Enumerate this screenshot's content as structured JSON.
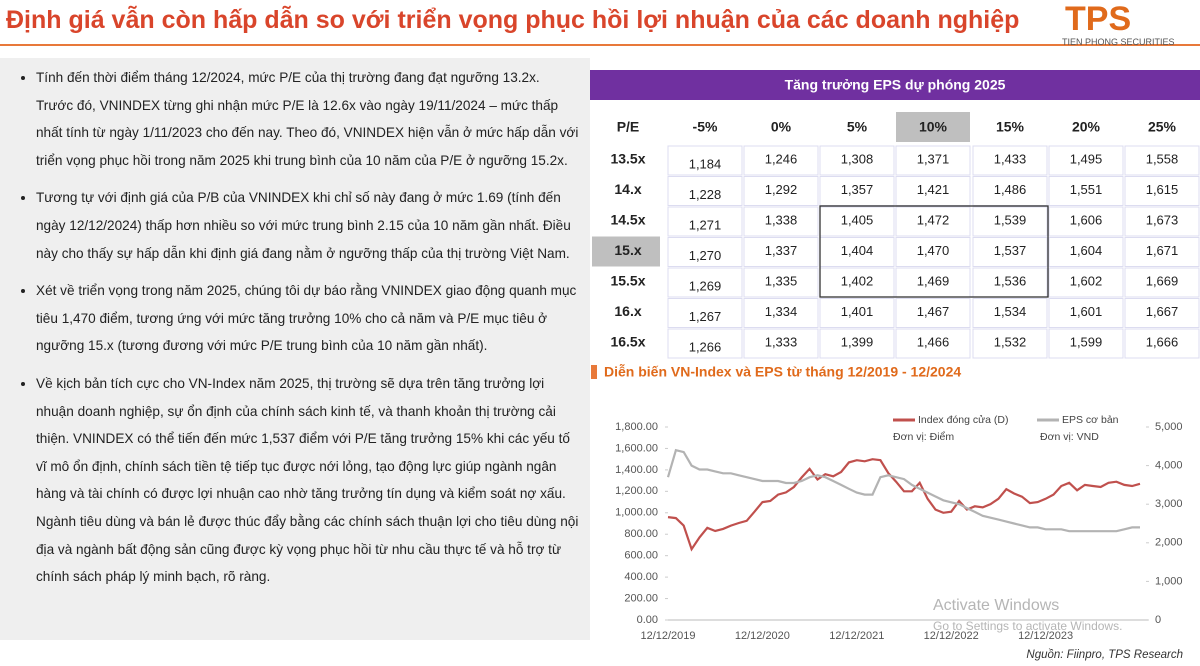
{
  "header": {
    "title": "Định giá vẫn còn hấp dẫn so với triển vọng phục hồi lợi nhuận của các doanh nghiệp",
    "logo": "TPS",
    "logo_subtitle": "TIEN PHONG SECURITIES"
  },
  "bullets": [
    "Tính đến thời điểm tháng 12/2024, mức P/E của thị trường đang đạt ngưỡng 13.2x. Trước đó, VNINDEX từng ghi nhận mức P/E là 12.6x vào ngày 19/11/2024 – mức thấp nhất tính từ ngày 1/11/2023 cho đến nay. Theo đó, VNINDEX hiện vẫn ở mức hấp dẫn với triển vọng phục hồi trong năm 2025 khi trung bình của 10 năm của P/E ở ngưỡng 15.2x.",
    "Tương tự với định giá của P/B của VNINDEX khi chỉ số này đang ở mức 1.69 (tính đến ngày 12/12/2024) thấp hơn nhiều so với mức trung bình 2.15 của 10 năm gần nhất. Điều này cho thấy sự hấp dẫn khi định giá đang nằm ở ngưỡng thấp của thị trường Việt Nam.",
    "Xét về triển vọng trong năm 2025, chúng tôi dự báo rằng VNINDEX giao động quanh mục tiêu 1,470 điểm, tương ứng với mức tăng trưởng 10% cho cả năm và P/E mục tiêu ở ngưỡng 15.x (tương đương với mức P/E trung bình của 10 năm gần nhất).",
    "Về kịch bản tích cực cho VN-Index năm 2025, thị trường sẽ dựa trên tăng trưởng lợi nhuận doanh nghiệp, sự ổn định của chính sách kinh tế, và thanh khoản thị trường cải thiện. VNINDEX có thể tiến đến mức 1,537 điểm với P/E tăng trưởng 15% khi các yếu tố vĩ mô ổn định, chính sách tiền tệ tiếp tục được nới lỏng, tạo động lực giúp ngành ngân hàng và tài chính có được lợi nhuận cao nhờ tăng trưởng tín dụng và kiểm soát nợ xấu. Ngành tiêu dùng và bán lẻ được thúc đẩy bằng các chính sách thuận lợi cho tiêu dùng nội địa và ngành bất động sản cũng được kỳ vọng phục hồi từ nhu cầu thực tế và hỗ trợ từ chính sách pháp lý minh bạch, rõ ràng."
  ],
  "table": {
    "title": "Tăng trưởng EPS dự phóng 2025",
    "header": [
      "P/E",
      "-5%",
      "0%",
      "5%",
      "10%",
      "15%",
      "20%",
      "25%"
    ],
    "rows": [
      [
        "13.5x",
        "1,184",
        "1,246",
        "1,308",
        "1,371",
        "1,433",
        "1,495",
        "1,558"
      ],
      [
        "14.x",
        "1,228",
        "1,292",
        "1,357",
        "1,421",
        "1,486",
        "1,551",
        "1,615"
      ],
      [
        "14.5x",
        "1,271",
        "1,338",
        "1,405",
        "1,472",
        "1,539",
        "1,606",
        "1,673"
      ],
      [
        "15.x",
        "1,270",
        "1,337",
        "1,404",
        "1,470",
        "1,537",
        "1,604",
        "1,671"
      ],
      [
        "15.5x",
        "1,269",
        "1,335",
        "1,402",
        "1,469",
        "1,536",
        "1,602",
        "1,669"
      ],
      [
        "16.x",
        "1,267",
        "1,334",
        "1,401",
        "1,467",
        "1,534",
        "1,601",
        "1,667"
      ],
      [
        "16.5x",
        "1,266",
        "1,333",
        "1,399",
        "1,466",
        "1,532",
        "1,599",
        "1,666"
      ]
    ]
  },
  "chart_data": {
    "type": "line",
    "title": "Diễn biến VN-Index và EPS từ tháng 12/2019 - 12/2024",
    "categories": [
      "12/12/2019",
      null,
      null,
      null,
      null,
      null,
      null,
      null,
      null,
      null,
      null,
      null,
      "12/12/2020",
      null,
      null,
      null,
      null,
      null,
      null,
      null,
      null,
      null,
      null,
      null,
      "12/12/2021",
      null,
      null,
      null,
      null,
      null,
      null,
      null,
      null,
      null,
      null,
      null,
      "12/12/2022",
      null,
      null,
      null,
      null,
      null,
      null,
      null,
      null,
      null,
      null,
      null,
      "12/12/2023",
      null,
      null,
      null,
      null,
      null,
      null,
      null,
      null,
      null,
      null,
      null,
      null
    ],
    "series": [
      {
        "name": "Index đóng cửa (D)",
        "unit": "Đơn vị: Điểm",
        "color": "#c0504d",
        "values": [
          960,
          950,
          880,
          660,
          770,
          860,
          830,
          850,
          880,
          905,
          925,
          1010,
          1100,
          1110,
          1170,
          1190,
          1240,
          1330,
          1410,
          1310,
          1360,
          1340,
          1380,
          1470,
          1490,
          1480,
          1500,
          1490,
          1370,
          1290,
          1200,
          1200,
          1280,
          1130,
          1030,
          1000,
          1010,
          1110,
          1030,
          1060,
          1050,
          1080,
          1130,
          1220,
          1180,
          1150,
          1090,
          1100,
          1130,
          1170,
          1250,
          1280,
          1210,
          1260,
          1250,
          1240,
          1280,
          1290,
          1260,
          1250,
          1270
        ]
      },
      {
        "name": "EPS cơ bản",
        "unit": "Đơn vị: VND",
        "color": "#b3b3b3",
        "axis": "y2",
        "values": [
          3700,
          4400,
          4350,
          4000,
          3900,
          3900,
          3850,
          3800,
          3800,
          3750,
          3700,
          3650,
          3600,
          3600,
          3600,
          3550,
          3550,
          3600,
          3700,
          3750,
          3700,
          3600,
          3500,
          3400,
          3300,
          3250,
          3250,
          3700,
          3750,
          3700,
          3650,
          3500,
          3400,
          3300,
          3200,
          3100,
          3050,
          3000,
          2900,
          2800,
          2700,
          2650,
          2600,
          2550,
          2500,
          2450,
          2400,
          2400,
          2350,
          2350,
          2350,
          2300,
          2300,
          2300,
          2300,
          2300,
          2300,
          2300,
          2350,
          2400,
          2400
        ]
      }
    ],
    "ylim": [
      0,
      1800
    ],
    "yticks": [
      {
        "value": 0,
        "label": "0.00"
      },
      {
        "value": 200,
        "label": "200.00"
      },
      {
        "value": 400,
        "label": "400.00"
      },
      {
        "value": 600,
        "label": "600.00"
      },
      {
        "value": 800,
        "label": "800.00"
      },
      {
        "value": 1000,
        "label": "1,000.00"
      },
      {
        "value": 1200,
        "label": "1,200.00"
      },
      {
        "value": 1400,
        "label": "1,400.00"
      },
      {
        "value": 1600,
        "label": "1,600.00"
      },
      {
        "value": 1800,
        "label": "1,800.00"
      }
    ],
    "y2lim": [
      0,
      5000
    ],
    "y2ticks": [
      0,
      {
        "value": 1000,
        "label": "1,000"
      },
      {
        "value": 2000,
        "label": "2,000"
      },
      {
        "value": 3000,
        "label": "3,000"
      },
      {
        "value": 4000,
        "label": "4,000"
      },
      {
        "value": 5000,
        "label": "5,000"
      }
    ],
    "source": "Nguồn: Fiinpro, TPS Research"
  },
  "watermark": {
    "title": "Activate Windows",
    "subtitle": "Go to Settings to activate Windows."
  }
}
